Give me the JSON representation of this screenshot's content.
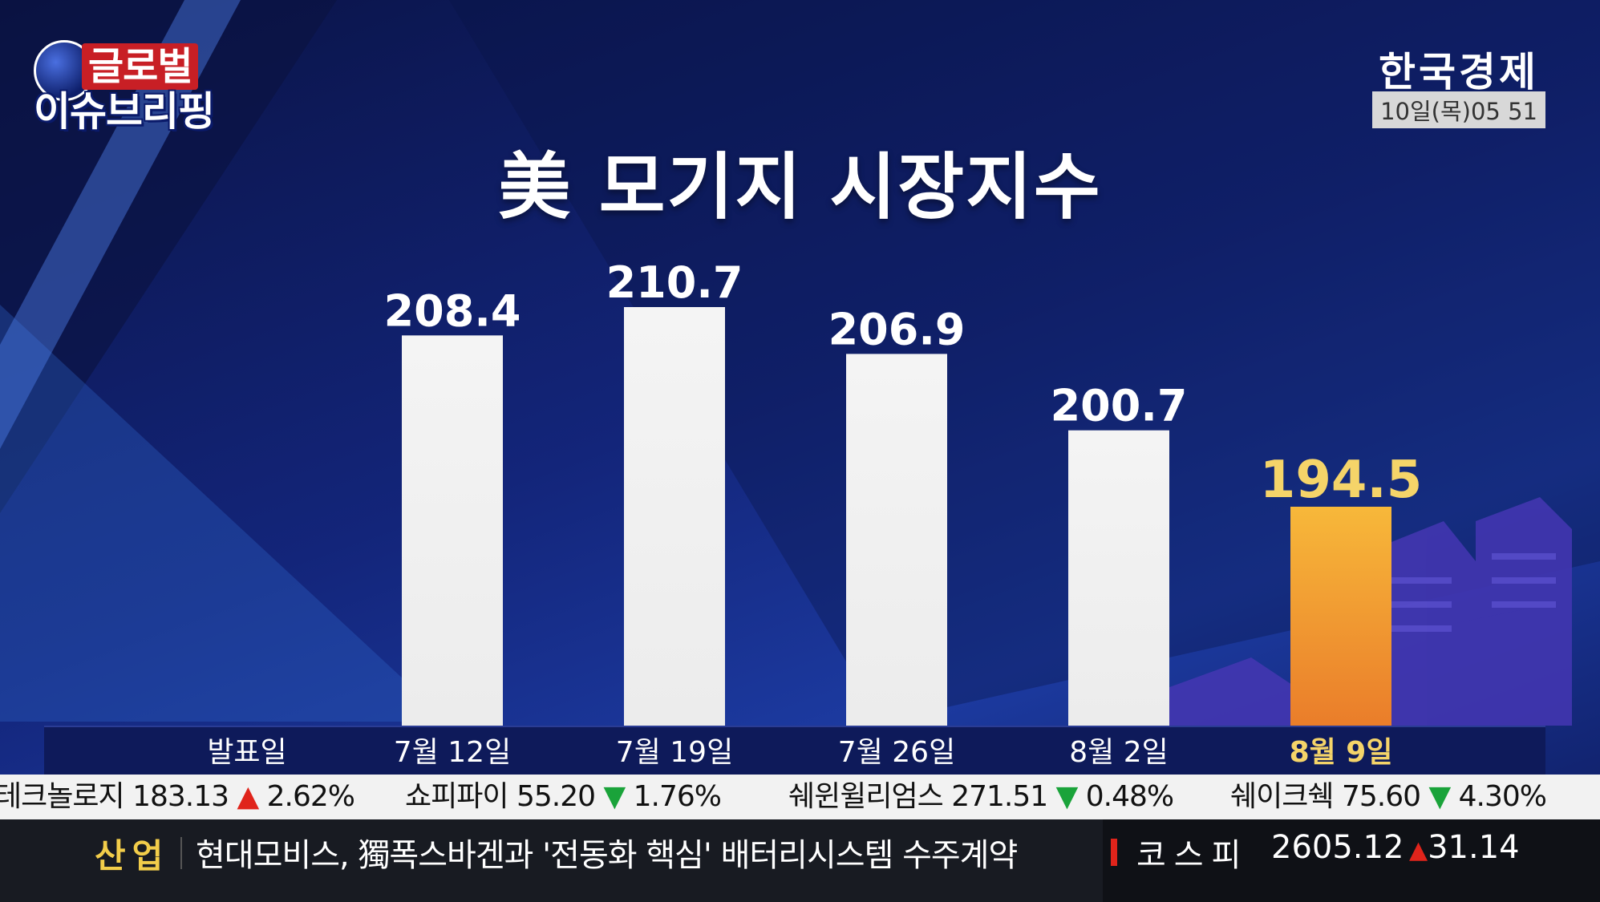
{
  "logo": {
    "line1": "글로벌",
    "line2": "이슈브리핑"
  },
  "broadcaster": {
    "name": "한국경제",
    "clock": "10일(목)05 51"
  },
  "chart_data": {
    "type": "bar",
    "title": "美 모기지 시장지수",
    "category_header": "발표일",
    "categories": [
      "7월 12일",
      "7월 19일",
      "7월 26일",
      "8월 2일",
      "8월 9일"
    ],
    "values": [
      208.4,
      210.7,
      206.9,
      200.7,
      194.5
    ],
    "value_labels": [
      "208.4",
      "210.7",
      "206.9",
      "200.7",
      "194.5"
    ],
    "highlight_index": 4,
    "colors": {
      "bar": "#ececec",
      "highlight": "#f0a030",
      "highlight_text": "#f5d469",
      "label": "#ffffff"
    },
    "grid": false,
    "legend": "none"
  },
  "ticker": [
    {
      "name": "테크놀로지",
      "price": "183.13",
      "dir": "up",
      "arrow": "▲",
      "pct": "2.62%"
    },
    {
      "name": "쇼피파이",
      "price": "55.20",
      "dir": "down",
      "arrow": "▼",
      "pct": "1.76%"
    },
    {
      "name": "쉐윈윌리엄스",
      "price": "271.51",
      "dir": "down",
      "arrow": "▼",
      "pct": "0.48%"
    },
    {
      "name": "쉐이크쉑",
      "price": "75.60",
      "dir": "down",
      "arrow": "▼",
      "pct": "4.30%"
    }
  ],
  "news": {
    "category": "산업",
    "headline": "현대모비스, 獨폭스바겐과 '전동화 핵심' 배터리시스템 수주계약",
    "index": {
      "name": "코스피",
      "value": "2605.12",
      "arrow": "▲",
      "change": "31.14"
    }
  }
}
